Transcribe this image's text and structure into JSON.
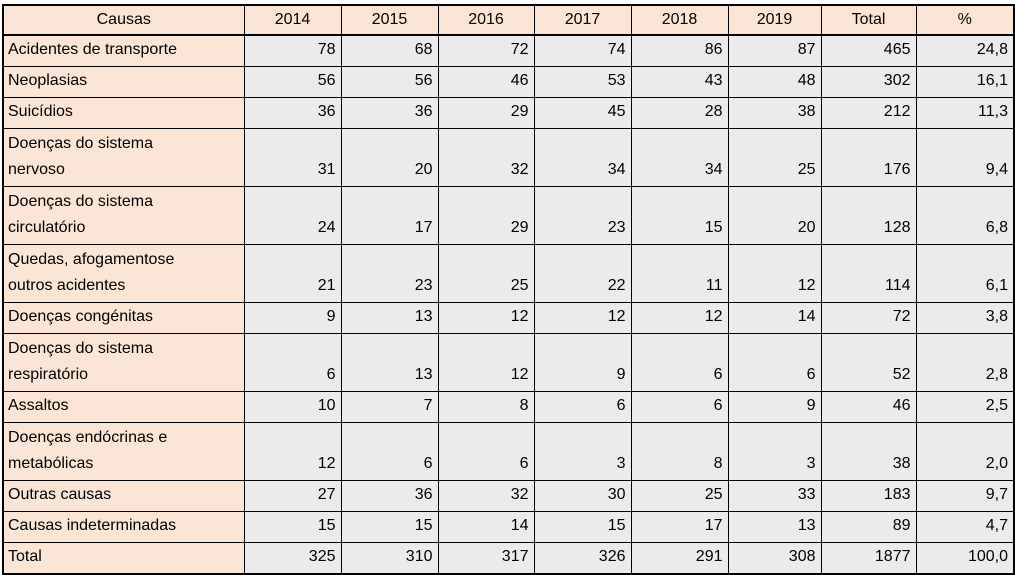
{
  "chart_data": {
    "type": "table",
    "columns": [
      "Causas",
      "2014",
      "2015",
      "2016",
      "2017",
      "2018",
      "2019",
      "Total",
      "%"
    ],
    "rows": [
      {
        "causa": "Acidentes de transporte",
        "values": [
          "78",
          "68",
          "72",
          "74",
          "86",
          "87",
          "465",
          "24,8"
        ]
      },
      {
        "causa": "Neoplasias",
        "values": [
          "56",
          "56",
          "46",
          "53",
          "43",
          "48",
          "302",
          "16,1"
        ]
      },
      {
        "causa": "Suicídios",
        "values": [
          "36",
          "36",
          "29",
          "45",
          "28",
          "38",
          "212",
          "11,3"
        ]
      },
      {
        "causa": "Doenças do sistema\nnervoso",
        "values": [
          "31",
          "20",
          "32",
          "34",
          "34",
          "25",
          "176",
          "9,4"
        ]
      },
      {
        "causa": "Doenças do sistema\ncirculatório",
        "values": [
          "24",
          "17",
          "29",
          "23",
          "15",
          "20",
          "128",
          "6,8"
        ]
      },
      {
        "causa": "Quedas, afogamentose\noutros acidentes",
        "values": [
          "21",
          "23",
          "25",
          "22",
          "11",
          "12",
          "114",
          "6,1"
        ]
      },
      {
        "causa": "Doenças congénitas",
        "values": [
          "9",
          "13",
          "12",
          "12",
          "12",
          "14",
          "72",
          "3,8"
        ]
      },
      {
        "causa": "Doenças do sistema\nrespiratório",
        "values": [
          "6",
          "13",
          "12",
          "9",
          "6",
          "6",
          "52",
          "2,8"
        ]
      },
      {
        "causa": "Assaltos",
        "values": [
          "10",
          "7",
          "8",
          "6",
          "6",
          "9",
          "46",
          "2,5"
        ]
      },
      {
        "causa": "Doenças endócrinas e\nmetabólicas",
        "values": [
          "12",
          "6",
          "6",
          "3",
          "8",
          "3",
          "38",
          "2,0"
        ]
      },
      {
        "causa": "Outras causas",
        "values": [
          "27",
          "36",
          "32",
          "30",
          "25",
          "33",
          "183",
          "9,7"
        ]
      },
      {
        "causa": "Causas indeterminadas",
        "values": [
          "15",
          "15",
          "14",
          "15",
          "17",
          "13",
          "89",
          "4,7"
        ]
      },
      {
        "causa": "Total",
        "values": [
          "325",
          "310",
          "317",
          "326",
          "291",
          "308",
          "1877",
          "100,0"
        ]
      }
    ]
  },
  "colors": {
    "header_fill": "#fbe5d6",
    "label_fill": "#fbe5d6",
    "data_fill": "#ebebeb",
    "border": "#000000",
    "text": "#000000"
  },
  "layout_hints": {
    "legend_position": "none",
    "grid": "all-borders"
  }
}
